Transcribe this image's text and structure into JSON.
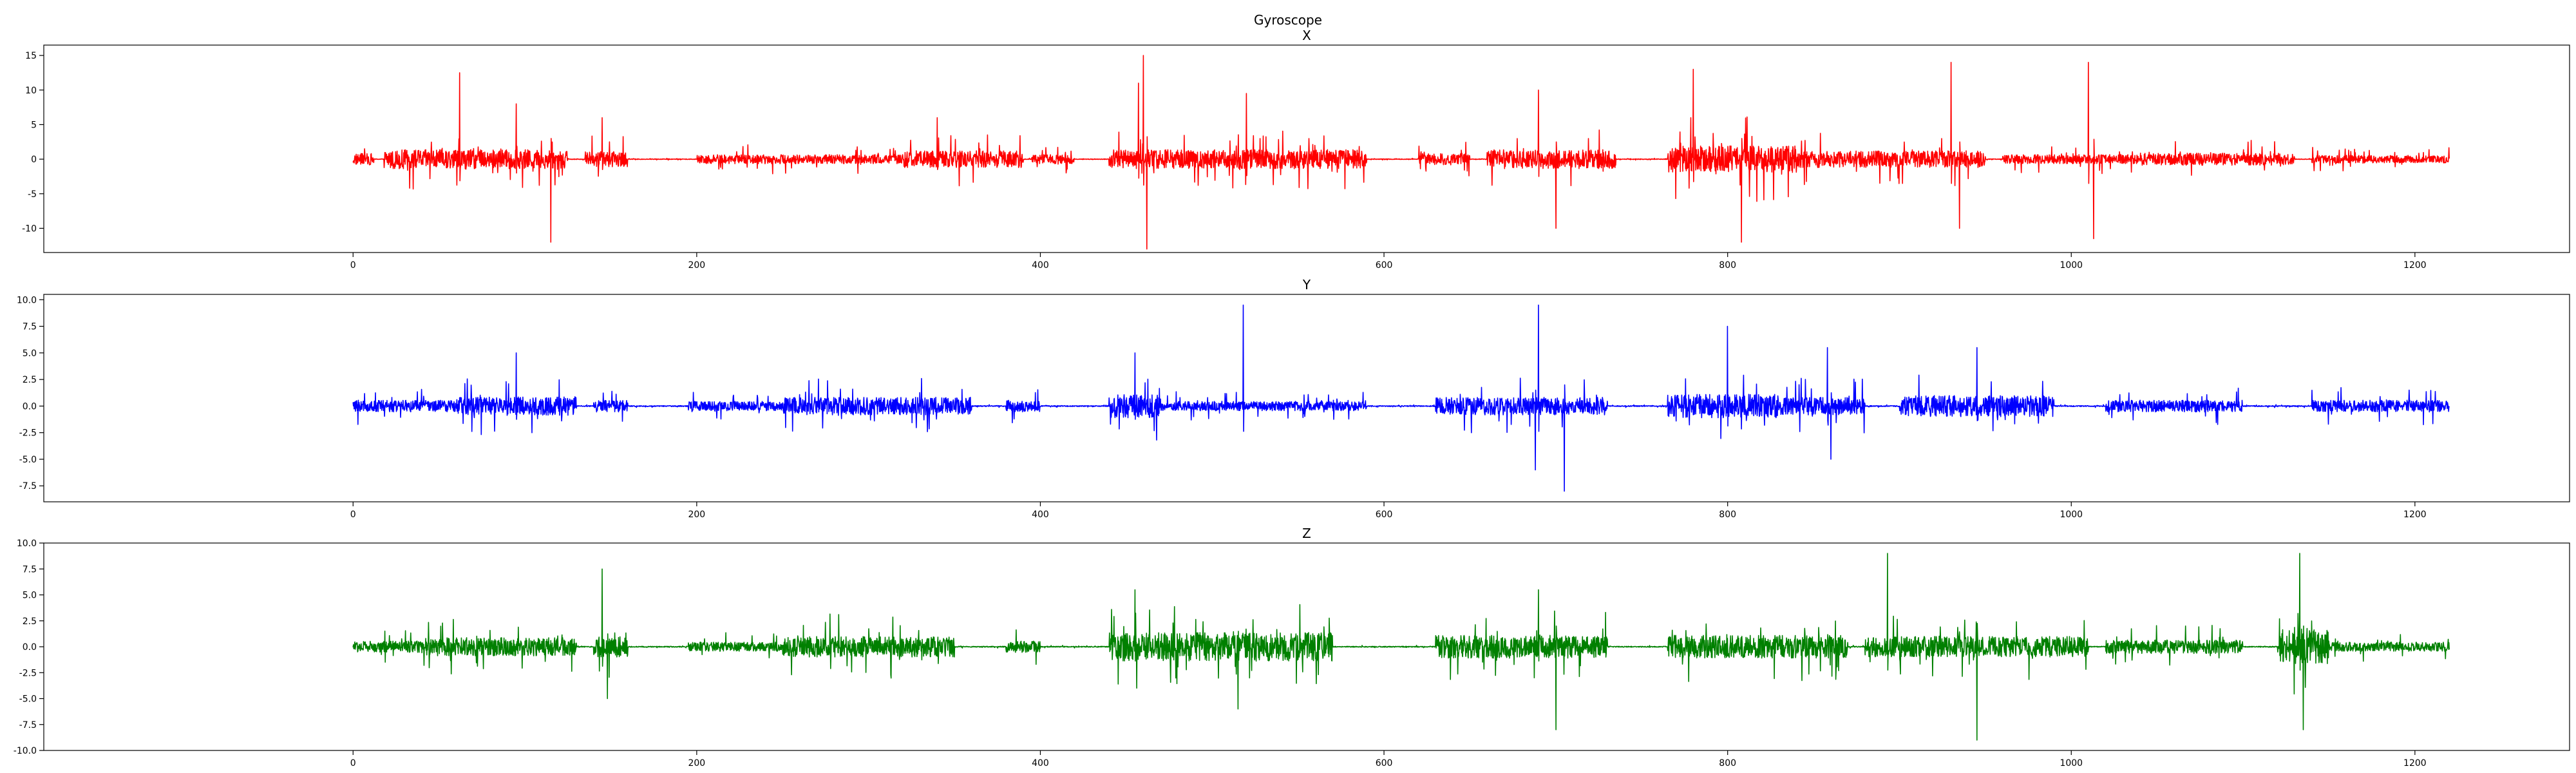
{
  "figure": {
    "suptitle": "Gyroscope"
  },
  "chart_data": [
    {
      "type": "line",
      "title": "X",
      "color": "#ff0000",
      "xlim": [
        -180,
        1290
      ],
      "ylim": [
        -13.5,
        16.5
      ],
      "xticks": [
        0,
        200,
        400,
        600,
        800,
        1000,
        1200
      ],
      "yticks": [
        15,
        10,
        5,
        0,
        -5,
        -10
      ],
      "grid": false,
      "legend": "none",
      "x_range": [
        0,
        1220
      ],
      "bursts": [
        {
          "start": 0,
          "end": 12,
          "amp": 1.5
        },
        {
          "start": 18,
          "end": 125,
          "amp": 2.5
        },
        {
          "start": 135,
          "end": 160,
          "amp": 2.0
        },
        {
          "start": 200,
          "end": 320,
          "amp": 1.2
        },
        {
          "start": 320,
          "end": 390,
          "amp": 2.2
        },
        {
          "start": 395,
          "end": 420,
          "amp": 1.2
        },
        {
          "start": 440,
          "end": 590,
          "amp": 2.5
        },
        {
          "start": 620,
          "end": 650,
          "amp": 1.5
        },
        {
          "start": 660,
          "end": 735,
          "amp": 2.5
        },
        {
          "start": 765,
          "end": 840,
          "amp": 3.5
        },
        {
          "start": 840,
          "end": 950,
          "amp": 2.2
        },
        {
          "start": 960,
          "end": 1040,
          "amp": 1.2
        },
        {
          "start": 1040,
          "end": 1130,
          "amp": 1.6
        },
        {
          "start": 1140,
          "end": 1220,
          "amp": 1.0
        }
      ],
      "spikes": [
        {
          "x": 62,
          "y": 12.5
        },
        {
          "x": 95,
          "y": 8.0
        },
        {
          "x": 115,
          "y": -12.0
        },
        {
          "x": 145,
          "y": 6.0
        },
        {
          "x": 340,
          "y": 6.0
        },
        {
          "x": 457,
          "y": 11.0
        },
        {
          "x": 460,
          "y": 15.0
        },
        {
          "x": 462,
          "y": -13.0
        },
        {
          "x": 520,
          "y": 9.5
        },
        {
          "x": 690,
          "y": 10.0
        },
        {
          "x": 700,
          "y": -10.0
        },
        {
          "x": 780,
          "y": 13.0
        },
        {
          "x": 808,
          "y": -12.0
        },
        {
          "x": 930,
          "y": 14.0
        },
        {
          "x": 935,
          "y": -10.0
        },
        {
          "x": 1010,
          "y": 14.0
        },
        {
          "x": 1013,
          "y": -11.5
        }
      ]
    },
    {
      "type": "line",
      "title": "Y",
      "color": "#0000ff",
      "xlim": [
        -180,
        1290
      ],
      "ylim": [
        -9.0,
        10.5
      ],
      "xticks": [
        0,
        200,
        400,
        600,
        800,
        1000,
        1200
      ],
      "yticks": [
        10.0,
        7.5,
        5.0,
        2.5,
        0.0,
        -2.5,
        -5.0,
        -7.5
      ],
      "grid": false,
      "legend": "none",
      "x_range": [
        0,
        1220
      ],
      "bursts": [
        {
          "start": 0,
          "end": 60,
          "amp": 1.0
        },
        {
          "start": 60,
          "end": 130,
          "amp": 1.6
        },
        {
          "start": 140,
          "end": 160,
          "amp": 1.0
        },
        {
          "start": 195,
          "end": 250,
          "amp": 0.8
        },
        {
          "start": 250,
          "end": 360,
          "amp": 1.5
        },
        {
          "start": 380,
          "end": 400,
          "amp": 1.0
        },
        {
          "start": 440,
          "end": 470,
          "amp": 2.0
        },
        {
          "start": 470,
          "end": 590,
          "amp": 0.8
        },
        {
          "start": 630,
          "end": 730,
          "amp": 1.5
        },
        {
          "start": 765,
          "end": 830,
          "amp": 2.0
        },
        {
          "start": 830,
          "end": 880,
          "amp": 1.5
        },
        {
          "start": 900,
          "end": 990,
          "amp": 1.8
        },
        {
          "start": 1020,
          "end": 1100,
          "amp": 1.0
        },
        {
          "start": 1140,
          "end": 1220,
          "amp": 1.0
        }
      ],
      "spikes": [
        {
          "x": 95,
          "y": 5.0
        },
        {
          "x": 455,
          "y": 5.0
        },
        {
          "x": 518,
          "y": 9.5
        },
        {
          "x": 688,
          "y": -6.0
        },
        {
          "x": 690,
          "y": 9.5
        },
        {
          "x": 705,
          "y": -8.0
        },
        {
          "x": 800,
          "y": 7.5
        },
        {
          "x": 858,
          "y": 5.5
        },
        {
          "x": 860,
          "y": -5.0
        },
        {
          "x": 945,
          "y": 5.5
        }
      ]
    },
    {
      "type": "line",
      "title": "Z",
      "color": "#008000",
      "xlim": [
        -180,
        1290
      ],
      "ylim": [
        -10.0,
        10.0
      ],
      "xticks": [
        0,
        200,
        400,
        600,
        800,
        1000,
        1200
      ],
      "yticks": [
        10.0,
        7.5,
        5.0,
        2.5,
        0.0,
        -2.5,
        -5.0,
        -7.5,
        -10.0
      ],
      "grid": false,
      "legend": "none",
      "x_range": [
        0,
        1220
      ],
      "bursts": [
        {
          "start": 0,
          "end": 40,
          "amp": 1.0
        },
        {
          "start": 40,
          "end": 130,
          "amp": 1.6
        },
        {
          "start": 140,
          "end": 160,
          "amp": 1.8
        },
        {
          "start": 195,
          "end": 250,
          "amp": 0.8
        },
        {
          "start": 250,
          "end": 350,
          "amp": 1.8
        },
        {
          "start": 380,
          "end": 400,
          "amp": 1.0
        },
        {
          "start": 440,
          "end": 570,
          "amp": 2.5
        },
        {
          "start": 630,
          "end": 730,
          "amp": 2.0
        },
        {
          "start": 765,
          "end": 870,
          "amp": 2.0
        },
        {
          "start": 880,
          "end": 1010,
          "amp": 1.8
        },
        {
          "start": 1020,
          "end": 1100,
          "amp": 1.2
        },
        {
          "start": 1120,
          "end": 1150,
          "amp": 3.0
        },
        {
          "start": 1150,
          "end": 1220,
          "amp": 0.8
        }
      ],
      "spikes": [
        {
          "x": 145,
          "y": 7.5
        },
        {
          "x": 148,
          "y": -5.0
        },
        {
          "x": 455,
          "y": 5.5
        },
        {
          "x": 515,
          "y": -6.0
        },
        {
          "x": 690,
          "y": 5.5
        },
        {
          "x": 700,
          "y": -8.0
        },
        {
          "x": 893,
          "y": 9.0
        },
        {
          "x": 945,
          "y": -9.0
        },
        {
          "x": 1133,
          "y": 9.0
        },
        {
          "x": 1135,
          "y": -8.0
        }
      ]
    }
  ]
}
